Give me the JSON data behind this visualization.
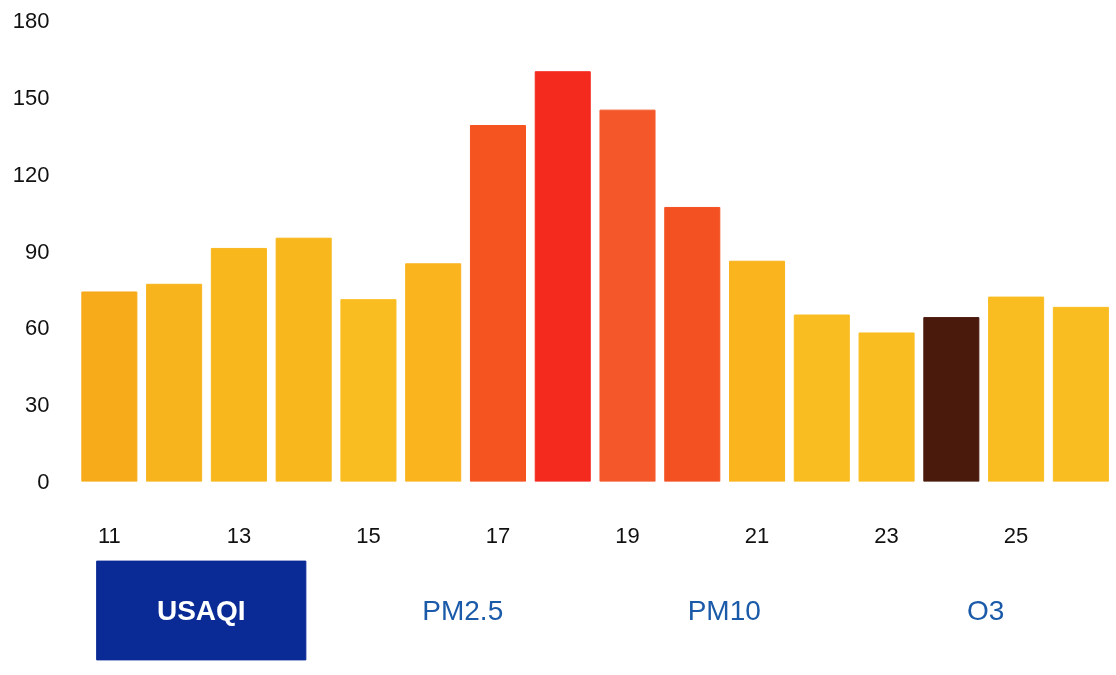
{
  "chart_data": {
    "type": "bar",
    "categories": [
      "11",
      null,
      "13",
      null,
      "15",
      null,
      "17",
      null,
      "19",
      null,
      "21",
      null,
      "23",
      null,
      "25",
      null
    ],
    "values": [
      74,
      77,
      91,
      95,
      71,
      85,
      139,
      160,
      145,
      107,
      86,
      65,
      58,
      64,
      72,
      68
    ],
    "colors": [
      "#f7ab1a",
      "#f8b41c",
      "#f8b71c",
      "#f8b71c",
      "#f9bd22",
      "#f9b41e",
      "#f5531f",
      "#f42a1f",
      "#f4582a",
      "#f45123",
      "#f9b41e",
      "#f9bd22",
      "#f9bd22",
      "#4a1a0c",
      "#f9bd22",
      "#f9bd22"
    ],
    "ylim": [
      0,
      180
    ],
    "yticks": [
      0,
      30,
      60,
      90,
      120,
      150,
      180
    ],
    "grid": false,
    "annotations": [
      "USAQI",
      "PM2.5",
      "PM10",
      "O3"
    ]
  }
}
